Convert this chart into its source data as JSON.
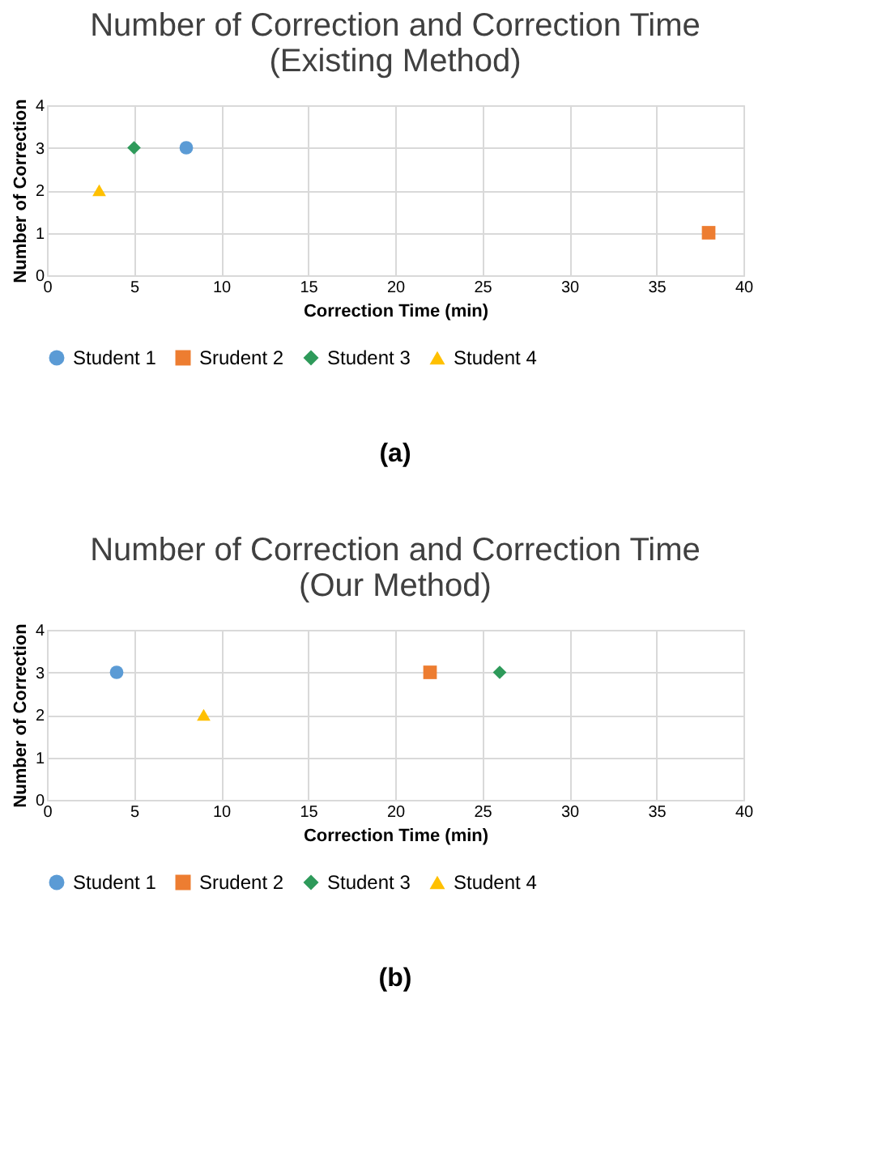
{
  "chart_data": [
    {
      "type": "scatter",
      "title": "Number of Correction and Correction Time",
      "subtitle": "(Existing Method)",
      "xlabel": "Correction Time (min)",
      "ylabel": "Number of Correction",
      "xlim": [
        0,
        40
      ],
      "xticks": [
        0,
        5,
        10,
        15,
        20,
        25,
        30,
        35,
        40
      ],
      "ylim": [
        0,
        4
      ],
      "yticks": [
        0,
        1,
        2,
        3,
        4
      ],
      "grid": true,
      "legend": "bottom",
      "annotations": [
        "(a)"
      ],
      "series": [
        {
          "name": "Student 1",
          "color": "#5b9bd5",
          "marker": "circle",
          "x": [
            8
          ],
          "values": [
            3
          ]
        },
        {
          "name": "Srudent 2",
          "color": "#ed7d31",
          "marker": "square",
          "x": [
            38
          ],
          "values": [
            1
          ]
        },
        {
          "name": "Student 3",
          "color": "#2e9a5a",
          "marker": "diamond",
          "x": [
            5
          ],
          "values": [
            3
          ]
        },
        {
          "name": "Student 4",
          "color": "#ffc000",
          "marker": "triangle",
          "x": [
            3
          ],
          "values": [
            2
          ]
        }
      ]
    },
    {
      "type": "scatter",
      "title": "Number of Correction and Correction Time",
      "subtitle": "(Our Method)",
      "xlabel": "Correction Time (min)",
      "ylabel": "Number of Correction",
      "xlim": [
        0,
        40
      ],
      "xticks": [
        0,
        5,
        10,
        15,
        20,
        25,
        30,
        35,
        40
      ],
      "ylim": [
        0,
        4
      ],
      "yticks": [
        0,
        1,
        2,
        3,
        4
      ],
      "grid": true,
      "legend": "bottom",
      "annotations": [
        "(b)"
      ],
      "series": [
        {
          "name": "Student 1",
          "color": "#5b9bd5",
          "marker": "circle",
          "x": [
            4
          ],
          "values": [
            3
          ]
        },
        {
          "name": "Srudent 2",
          "color": "#ed7d31",
          "marker": "square",
          "x": [
            22
          ],
          "values": [
            3
          ]
        },
        {
          "name": "Student 3",
          "color": "#2e9a5a",
          "marker": "diamond",
          "x": [
            26
          ],
          "values": [
            3
          ]
        },
        {
          "name": "Student 4",
          "color": "#ffc000",
          "marker": "triangle",
          "x": [
            9
          ],
          "values": [
            2
          ]
        }
      ]
    }
  ]
}
